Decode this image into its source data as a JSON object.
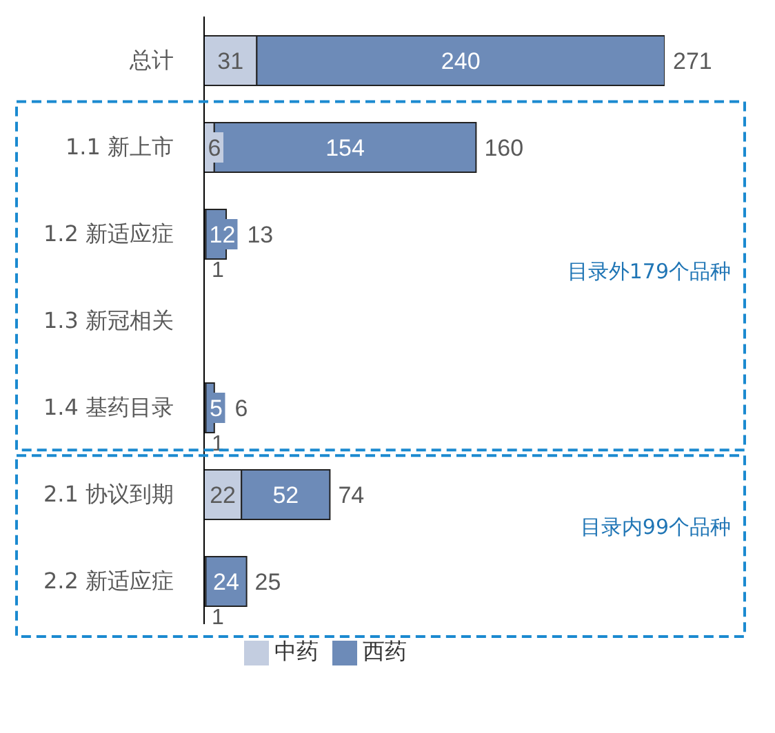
{
  "chart_data": {
    "type": "bar",
    "orientation": "horizontal",
    "stacked": true,
    "categories": [
      "总计",
      "1.1 新上市",
      "1.2 新适应症",
      "1.3 新冠相关",
      "1.4 基药目录",
      "2.1 协议到期",
      "2.2 新适应症"
    ],
    "series": [
      {
        "name": "中药",
        "color": "#c3cde0",
        "values": [
          31,
          6,
          1,
          null,
          1,
          22,
          1
        ]
      },
      {
        "name": "西药",
        "color": "#6d8bb8",
        "values": [
          240,
          154,
          12,
          null,
          5,
          52,
          24
        ]
      }
    ],
    "data_labels": true,
    "totals": [
      "271",
      "160",
      "13",
      null,
      "6",
      "74",
      "25"
    ],
    "legend": "bottom",
    "grid": false,
    "tick_labels": "y",
    "annotations": [
      "目录外179个品种",
      "目录内99个品种"
    ]
  }
}
